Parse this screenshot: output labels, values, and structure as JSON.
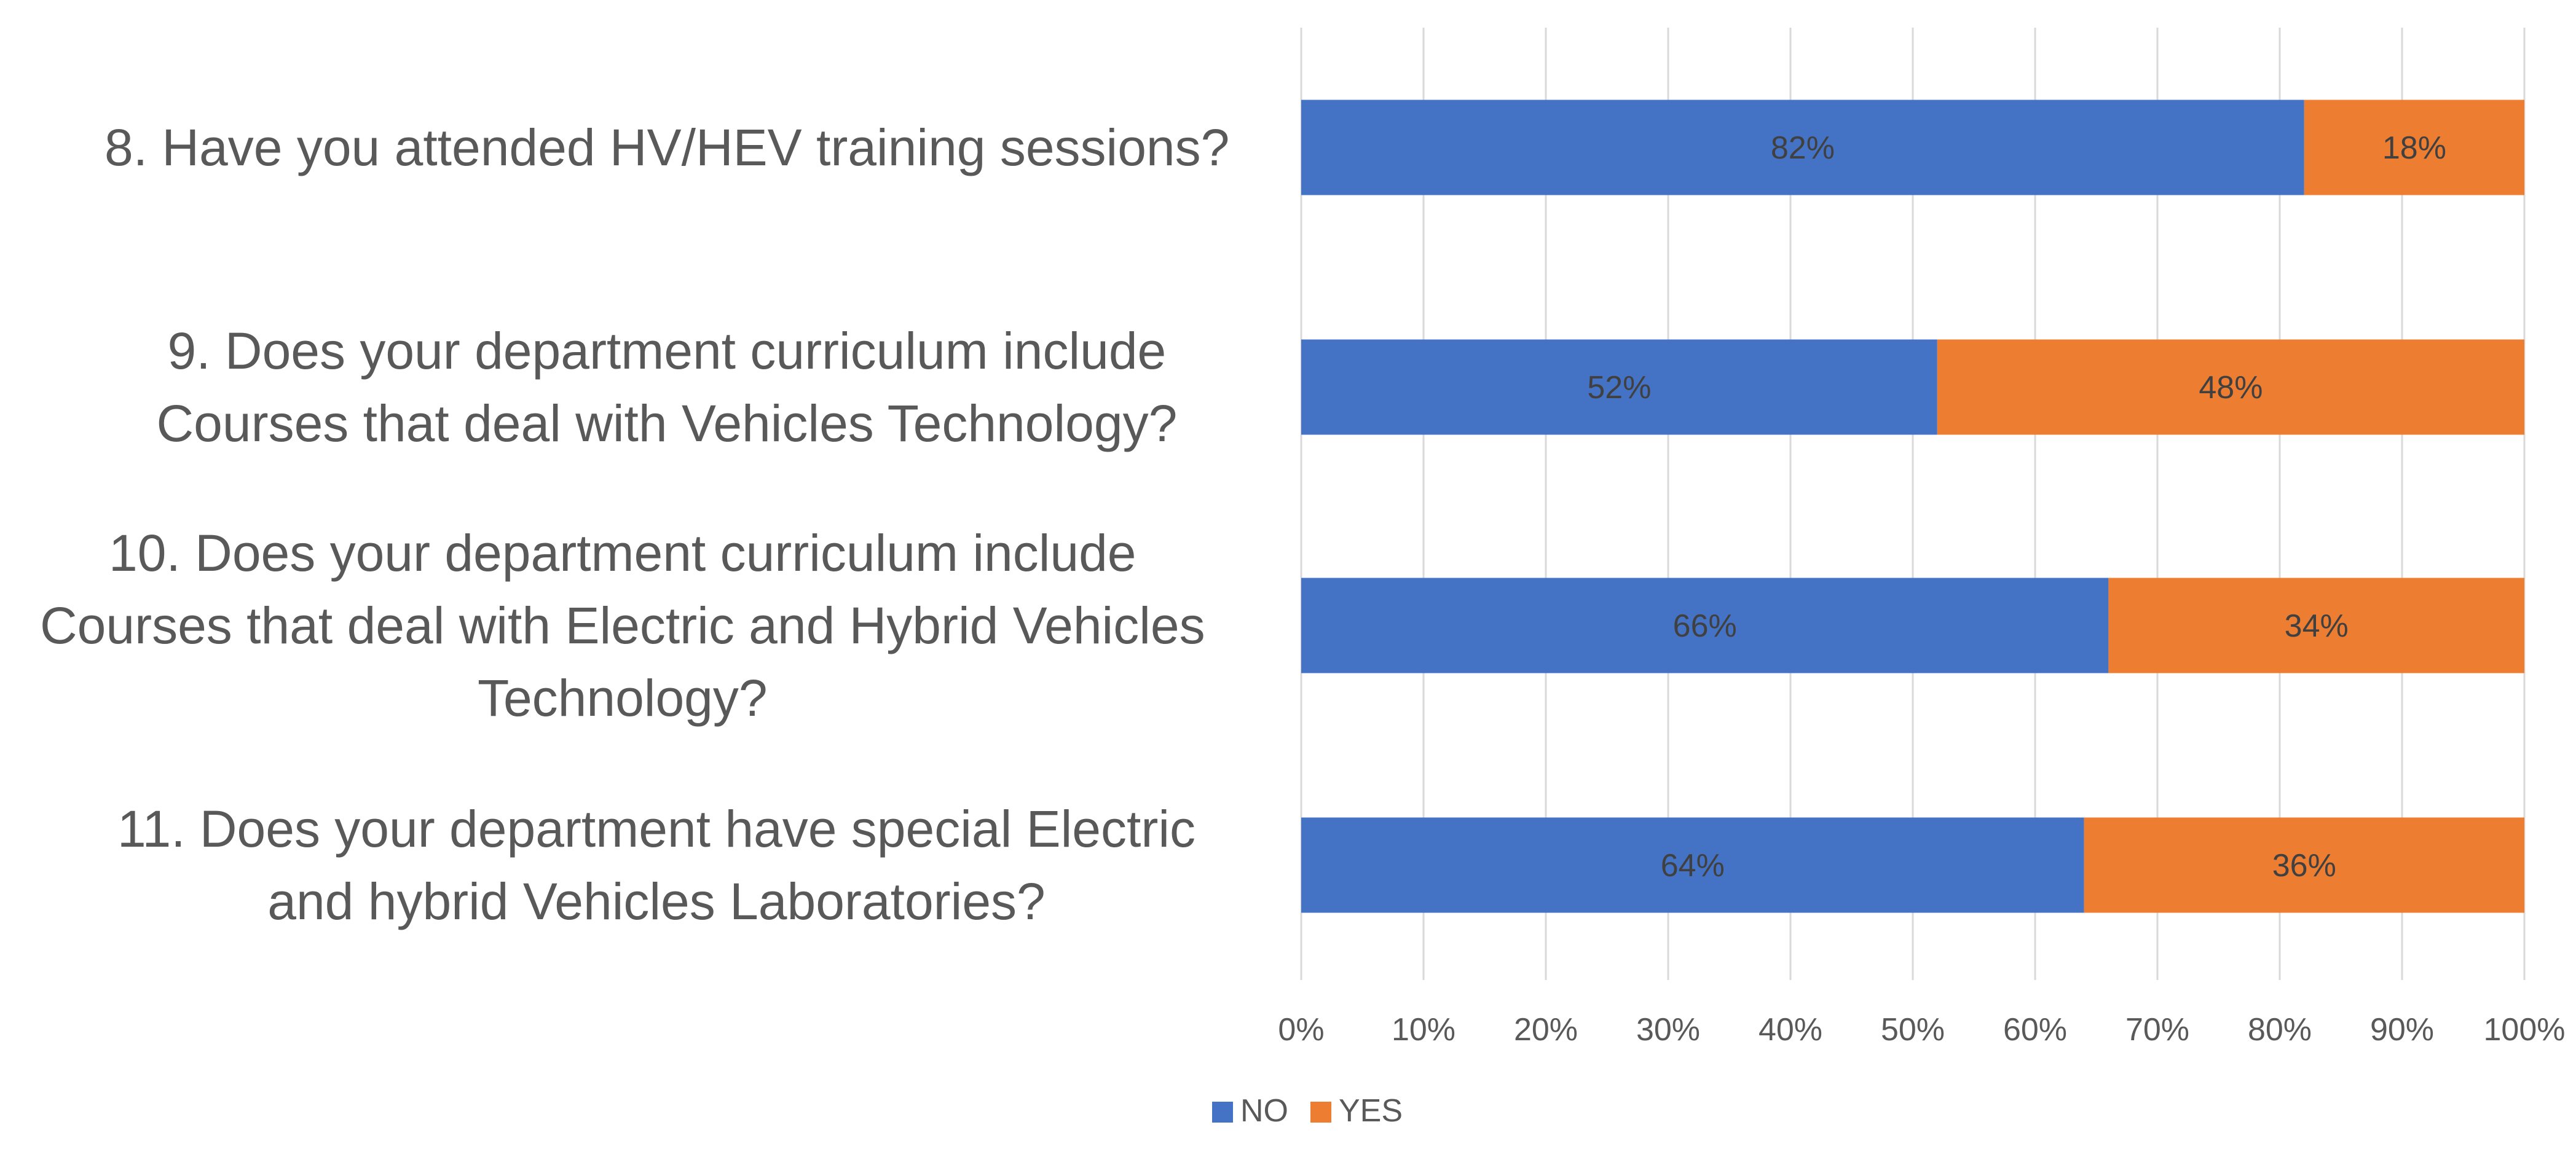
{
  "chart_data": {
    "type": "bar",
    "orientation": "horizontal",
    "stacked": "100%",
    "categories": [
      [
        "8. Have you attended HV/HEV training sessions?"
      ],
      [
        "9. Does your department curriculum include",
        "Courses that deal with Vehicles Technology?"
      ],
      [
        "10. Does your department curriculum include",
        "Courses that deal with Electric and Hybrid Vehicles",
        "Technology?"
      ],
      [
        "11. Does your department have special Electric",
        "and hybrid Vehicles Laboratories?"
      ]
    ],
    "series": [
      {
        "name": "NO",
        "color": "#4472C4",
        "values": [
          82,
          52,
          66,
          64
        ],
        "labels": [
          "82%",
          "52%",
          "66%",
          "64%"
        ]
      },
      {
        "name": "YES",
        "color": "#ED7D31",
        "values": [
          18,
          48,
          34,
          36
        ],
        "labels": [
          "18%",
          "48%",
          "34%",
          "36%"
        ]
      }
    ],
    "xlim": [
      0,
      100
    ],
    "xticks": [
      "0%",
      "10%",
      "20%",
      "30%",
      "40%",
      "50%",
      "60%",
      "70%",
      "80%",
      "90%",
      "100%"
    ],
    "grid": "vertical",
    "legend_position": "bottom",
    "gridline_color": "#D9D9D9",
    "text_color": "#595959",
    "label_text_color": "#404040"
  }
}
